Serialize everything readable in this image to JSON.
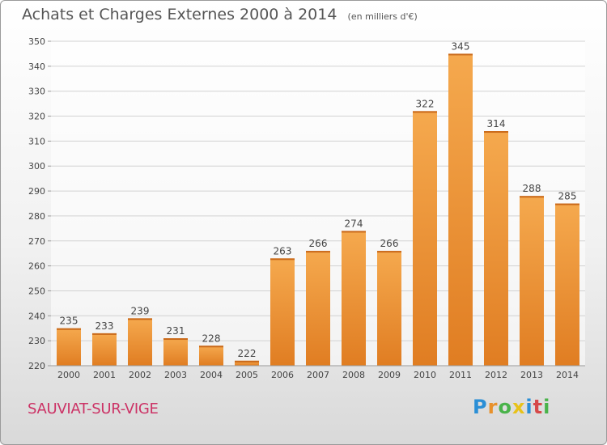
{
  "title": "Achats et Charges Externes 2000 à 2014",
  "subtitle": "(en milliers d'€)",
  "town": "SAUVIAT-SUR-VIGE",
  "logo": {
    "letters": [
      "P",
      "r",
      "o",
      "x",
      "i",
      "t",
      "i"
    ],
    "colors": [
      "#2b8fd6",
      "#e8912b",
      "#49b34a",
      "#e8c21a",
      "#2b8fd6",
      "#d64949",
      "#49b34a"
    ]
  },
  "colors": {
    "bar_light": "#f5a94e",
    "bar_dark": "#e07d22",
    "grid": "#d2d2d2",
    "text": "#444444"
  },
  "chart_data": {
    "type": "bar",
    "categories": [
      "2000",
      "2001",
      "2002",
      "2003",
      "2004",
      "2005",
      "2006",
      "2007",
      "2008",
      "2009",
      "2010",
      "2011",
      "2012",
      "2013",
      "2014"
    ],
    "values": [
      235,
      233,
      239,
      231,
      228,
      222,
      263,
      266,
      274,
      266,
      322,
      345,
      314,
      288,
      285
    ],
    "ylim": [
      220,
      350
    ],
    "yticks": [
      220,
      230,
      240,
      250,
      260,
      270,
      280,
      290,
      300,
      310,
      320,
      330,
      340,
      350
    ],
    "grid": true,
    "data_labels": true
  }
}
